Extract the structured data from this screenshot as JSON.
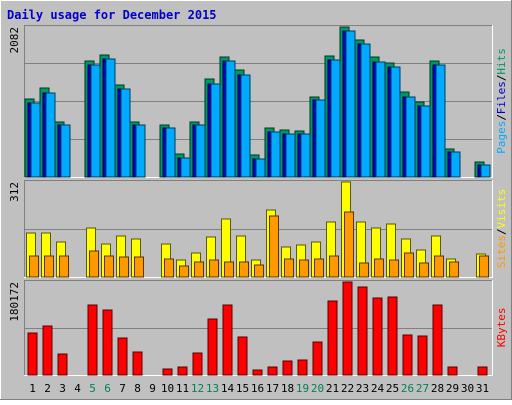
{
  "chart_data": {
    "type": "bar",
    "title": "Daily usage for December 2015",
    "days": [
      "1",
      "2",
      "3",
      "4",
      "5",
      "6",
      "7",
      "8",
      "9",
      "10",
      "11",
      "12",
      "13",
      "14",
      "15",
      "16",
      "17",
      "18",
      "19",
      "20",
      "21",
      "22",
      "23",
      "24",
      "25",
      "26",
      "27",
      "28",
      "29",
      "30",
      "31"
    ],
    "weekend_days": [
      "5",
      "6",
      "12",
      "13",
      "19",
      "20",
      "26",
      "27"
    ],
    "panels": [
      {
        "key": "top",
        "max_label": "2082",
        "ymax": 2082,
        "legend": [
          {
            "text": "Pages",
            "color": "#00aaff"
          },
          {
            "text": "Files",
            "color": "#0000cc"
          },
          {
            "text": "Hits",
            "color": "#009966"
          }
        ],
        "series": [
          {
            "name": "Hits",
            "color": "#009966",
            "values": [
              1080,
              1230,
              760,
              0,
              1615,
              1695,
              1280,
              770,
              0,
              725,
              315,
              770,
              1355,
              1670,
              1480,
              305,
              685,
              650,
              640,
              1115,
              1680,
              2082,
              1900,
              1660,
              1580,
              1175,
              1040,
              1615,
              395,
              0,
              205
            ]
          },
          {
            "name": "Files",
            "color": "#0000cc",
            "values": [
              1030,
              1170,
              715,
              0,
              1555,
              1640,
              1215,
              720,
              0,
              680,
              265,
              720,
              1295,
              1610,
              1420,
              255,
              630,
              600,
              600,
              1065,
              1620,
              2020,
              1840,
              1600,
              1520,
              1105,
              990,
              1555,
              345,
              0,
              160
            ]
          },
          {
            "name": "Pages",
            "color": "#00aaff",
            "values": [
              1030,
              1170,
              715,
              0,
              1555,
              1640,
              1215,
              720,
              0,
              680,
              265,
              720,
              1295,
              1610,
              1420,
              255,
              630,
              600,
              600,
              1065,
              1620,
              2020,
              1840,
              1600,
              1520,
              1105,
              990,
              1555,
              345,
              0,
              160
            ]
          }
        ]
      },
      {
        "key": "mid",
        "max_label": "312",
        "ymax": 312,
        "legend": [
          {
            "text": "Sites",
            "color": "#ff9900"
          },
          {
            "text": "Visits",
            "color": "#ffff00"
          }
        ],
        "series": [
          {
            "name": "Visits",
            "color": "#ffff00",
            "values": [
              145,
              145,
              115,
              0,
              160,
              110,
              135,
              125,
              0,
              110,
              55,
              80,
              130,
              190,
              135,
              55,
              220,
              100,
              105,
              115,
              180,
              312,
              180,
              160,
              175,
              125,
              90,
              135,
              60,
              0,
              75
            ]
          },
          {
            "name": "Sites",
            "color": "#ff9900",
            "values": [
              70,
              70,
              70,
              0,
              85,
              70,
              65,
              65,
              0,
              60,
              35,
              50,
              55,
              50,
              50,
              40,
              200,
              60,
              55,
              60,
              70,
              215,
              45,
              60,
              55,
              80,
              45,
              70,
              50,
              0,
              70
            ]
          }
        ]
      },
      {
        "key": "bot",
        "max_label": "180172",
        "ymax": 180172,
        "legend": [
          {
            "text": "KBytes",
            "color": "#ff0000"
          }
        ],
        "series": [
          {
            "name": "KBytes",
            "color": "#ff0000",
            "values": [
              81000,
              94000,
              40000,
              0,
              136000,
              125000,
              71000,
              45000,
              0,
              11000,
              15000,
              42000,
              108000,
              136000,
              74000,
              10000,
              16000,
              27000,
              30000,
              63000,
              143000,
              180172,
              170000,
              150000,
              152000,
              78000,
              75000,
              136000,
              15000,
              0,
              15000
            ]
          }
        ]
      }
    ]
  }
}
